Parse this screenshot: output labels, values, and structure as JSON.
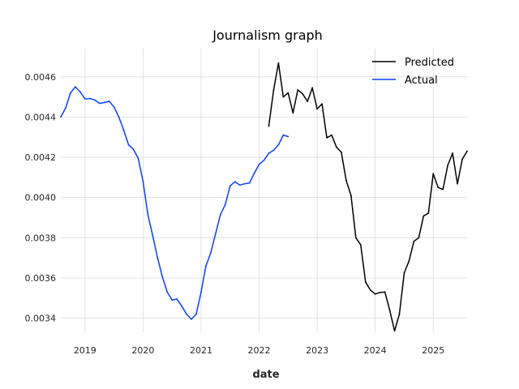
{
  "chart_data": {
    "type": "line",
    "title": "Journalism graph",
    "xlabel": "date",
    "ylabel": "",
    "xlim": [
      "2018-08-01",
      "2025-08-01"
    ],
    "ylim": [
      0.00333,
      0.00474
    ],
    "grid": true,
    "legend_position": "top-right",
    "x_ticks": [
      "2019",
      "2020",
      "2021",
      "2022",
      "2023",
      "2024",
      "2025"
    ],
    "y_ticks": [
      "0.0034",
      "0.0036",
      "0.0038",
      "0.0040",
      "0.0042",
      "0.0044",
      "0.0046"
    ],
    "series": [
      {
        "name": "Predicted",
        "color": "#000000",
        "x": [
          "2022-03",
          "2022-04",
          "2022-05",
          "2022-06",
          "2022-07",
          "2022-08",
          "2022-09",
          "2022-10",
          "2022-11",
          "2022-12",
          "2023-01",
          "2023-02",
          "2023-03",
          "2023-04",
          "2023-05",
          "2023-06",
          "2023-07",
          "2023-08",
          "2023-09",
          "2023-10",
          "2023-11",
          "2023-12",
          "2024-01",
          "2024-02",
          "2024-03",
          "2024-04",
          "2024-05",
          "2024-06",
          "2024-07",
          "2024-08",
          "2024-09",
          "2024-10",
          "2024-11",
          "2024-12",
          "2025-01",
          "2025-02",
          "2025-03",
          "2025-04",
          "2025-05",
          "2025-06",
          "2025-07",
          "2025-08"
        ],
        "values": [
          0.004355,
          0.004535,
          0.004668,
          0.0045,
          0.00452,
          0.00442,
          0.004535,
          0.004515,
          0.004478,
          0.004545,
          0.00444,
          0.004465,
          0.004297,
          0.00431,
          0.00425,
          0.004225,
          0.004085,
          0.00401,
          0.0038,
          0.003765,
          0.00358,
          0.00354,
          0.00352,
          0.003528,
          0.00353,
          0.00344,
          0.003337,
          0.00342,
          0.003625,
          0.003685,
          0.003782,
          0.0038,
          0.003908,
          0.003922,
          0.004118,
          0.00405,
          0.00404,
          0.00416,
          0.00422,
          0.004068,
          0.00419,
          0.00423
        ]
      },
      {
        "name": "Actual",
        "color": "#0a3fff",
        "x": [
          "2018-08",
          "2018-09",
          "2018-10",
          "2018-11",
          "2018-12",
          "2019-01",
          "2019-02",
          "2019-03",
          "2019-04",
          "2019-05",
          "2019-06",
          "2019-07",
          "2019-08",
          "2019-09",
          "2019-10",
          "2019-11",
          "2019-12",
          "2020-01",
          "2020-02",
          "2020-03",
          "2020-04",
          "2020-05",
          "2020-06",
          "2020-07",
          "2020-08",
          "2020-09",
          "2020-10",
          "2020-11",
          "2020-12",
          "2021-01",
          "2021-02",
          "2021-03",
          "2021-04",
          "2021-05",
          "2021-06",
          "2021-07",
          "2021-08",
          "2021-09",
          "2021-10",
          "2021-11",
          "2021-12",
          "2022-01",
          "2022-02",
          "2022-03",
          "2022-04",
          "2022-05",
          "2022-06",
          "2022-07"
        ],
        "values": [
          0.0044,
          0.004445,
          0.00452,
          0.00455,
          0.004525,
          0.00449,
          0.004492,
          0.004485,
          0.004468,
          0.004472,
          0.004478,
          0.00445,
          0.0044,
          0.004335,
          0.004262,
          0.00424,
          0.004195,
          0.00408,
          0.003915,
          0.00381,
          0.0037,
          0.003605,
          0.00353,
          0.00349,
          0.003495,
          0.00346,
          0.00342,
          0.003395,
          0.00342,
          0.00353,
          0.00366,
          0.003725,
          0.00382,
          0.003915,
          0.003965,
          0.004058,
          0.004078,
          0.004062,
          0.004068,
          0.004072,
          0.00412,
          0.004165,
          0.004185,
          0.00422,
          0.004235,
          0.004262,
          0.00431,
          0.004303
        ]
      }
    ]
  }
}
